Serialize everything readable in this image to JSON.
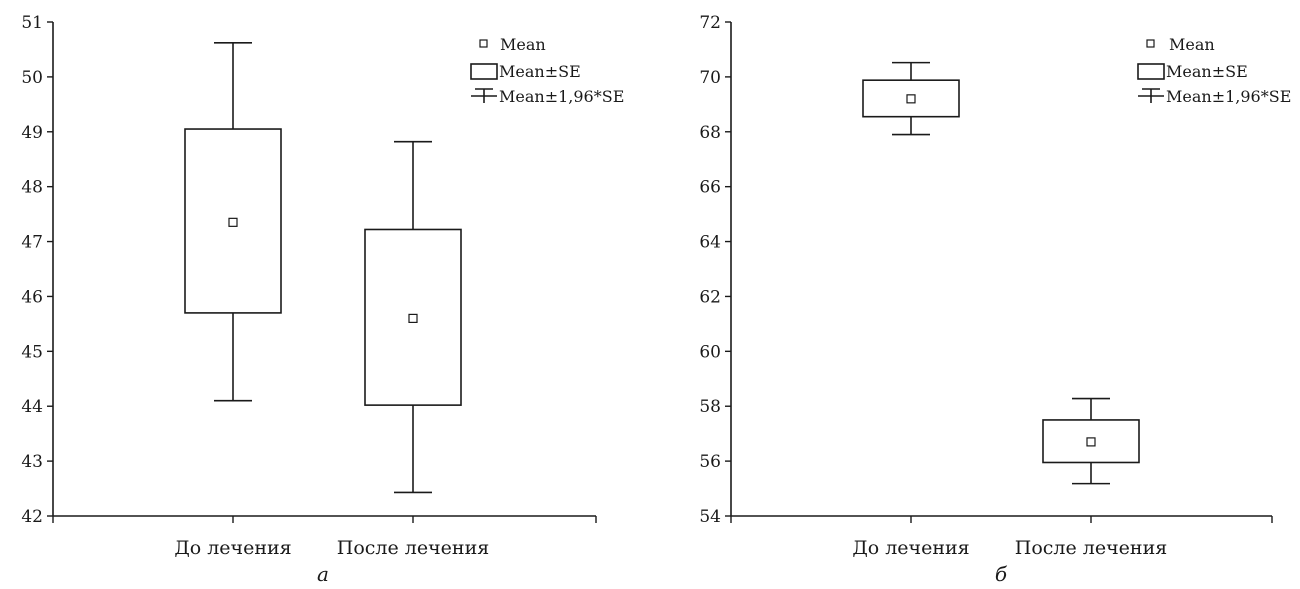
{
  "legend": {
    "mean": "Mean",
    "mean_se": "Mean±SE",
    "mean_ci": "Mean±1,96*SE"
  },
  "chart_data": [
    {
      "type": "boxplot",
      "panel_label": "а",
      "categories": [
        "До лечения",
        "После лечения"
      ],
      "ylim": [
        42,
        51
      ],
      "yticks": [
        "42",
        "43",
        "44",
        "45",
        "46",
        "47",
        "48",
        "49",
        "50",
        "51"
      ],
      "series": [
        {
          "category": "До лечения",
          "mean": 47.35,
          "se_low": 45.7,
          "se_high": 49.05,
          "ci_low": 44.1,
          "ci_high": 50.62
        },
        {
          "category": "После лечения",
          "mean": 45.6,
          "se_low": 44.02,
          "se_high": 47.22,
          "ci_low": 42.43,
          "ci_high": 48.82
        }
      ],
      "legend_position": "top-right",
      "grid": false
    },
    {
      "type": "boxplot",
      "panel_label": "б",
      "categories": [
        "До лечения",
        "После лечения"
      ],
      "ylim": [
        54,
        72
      ],
      "yticks": [
        "54",
        "56",
        "58",
        "60",
        "62",
        "64",
        "66",
        "68",
        "70",
        "72"
      ],
      "series": [
        {
          "category": "До лечения",
          "mean": 69.2,
          "se_low": 68.55,
          "se_high": 69.88,
          "ci_low": 67.9,
          "ci_high": 70.52
        },
        {
          "category": "После лечения",
          "mean": 56.7,
          "se_low": 55.95,
          "se_high": 57.5,
          "ci_low": 55.18,
          "ci_high": 58.28
        }
      ],
      "legend_position": "top-right",
      "grid": false
    }
  ]
}
